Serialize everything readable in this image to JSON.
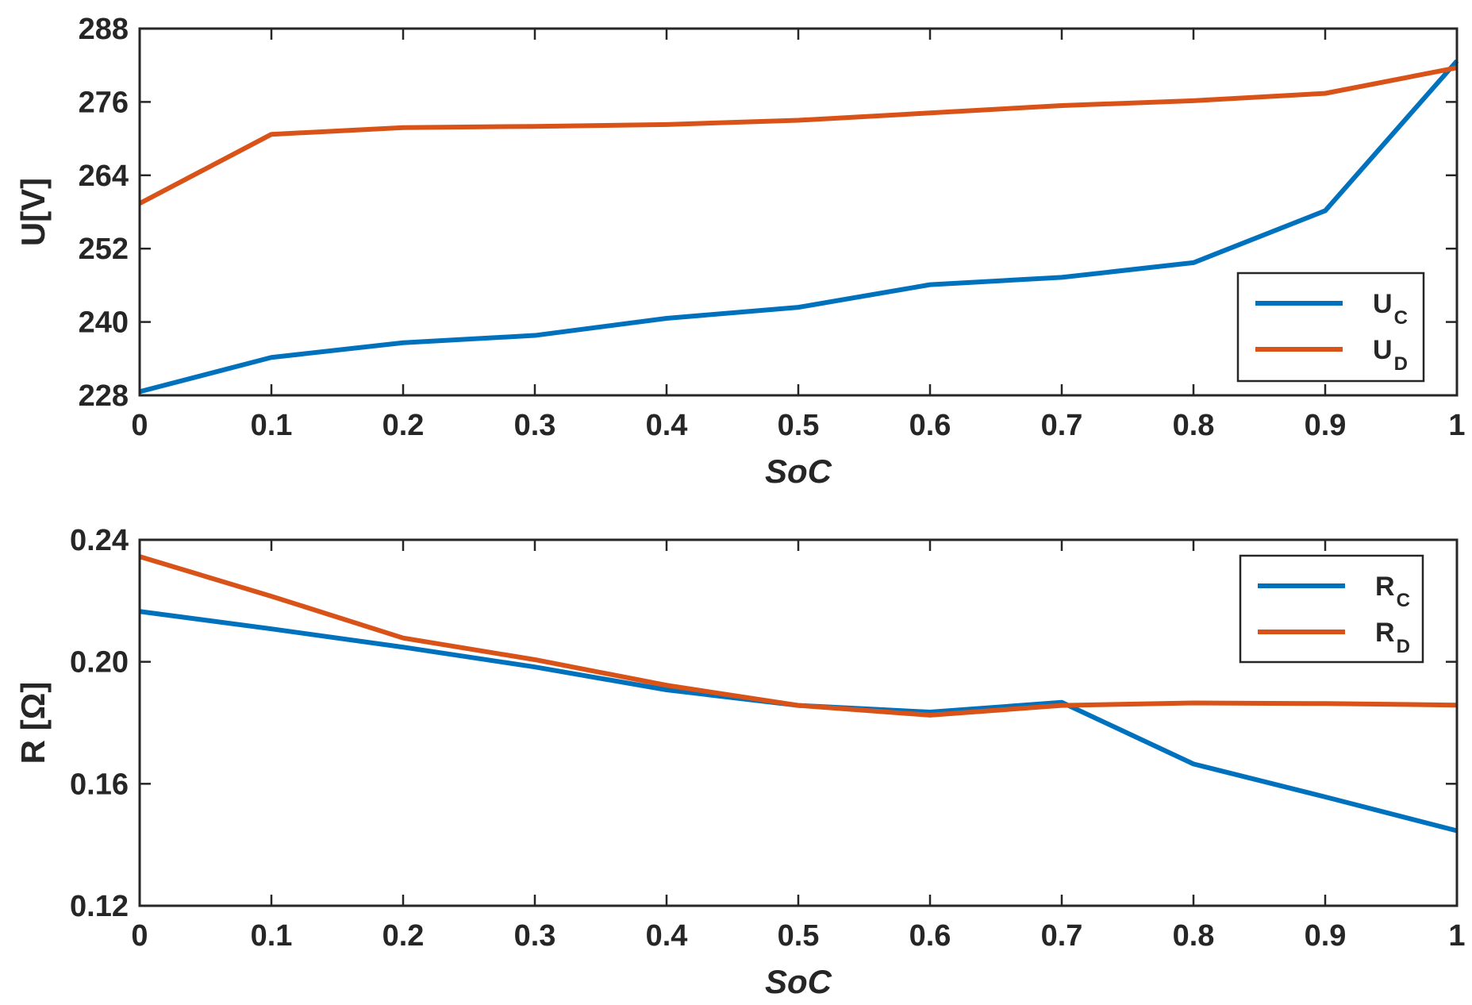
{
  "figure": {
    "colors": {
      "series1": "#0072BD",
      "series2": "#D95319",
      "axis": "#262626",
      "background": "#ffffff"
    }
  },
  "chart_data": [
    {
      "type": "line",
      "xlabel": "SoC",
      "ylabel": "U[V]",
      "xlim": [
        0,
        1
      ],
      "ylim": [
        228,
        288
      ],
      "xticks": [
        0,
        0.1,
        0.2,
        0.3,
        0.4,
        0.5,
        0.6,
        0.7,
        0.8,
        0.9,
        1
      ],
      "xtick_labels": [
        "0",
        "0.1",
        "0.2",
        "0.3",
        "0.4",
        "0.5",
        "0.6",
        "0.7",
        "0.8",
        "0.9",
        "1"
      ],
      "yticks": [
        228,
        240,
        252,
        264,
        276,
        288
      ],
      "ytick_labels": [
        "228",
        "240",
        "252",
        "264",
        "276",
        "288"
      ],
      "grid": false,
      "legend_position": "bottom-right",
      "x": [
        0,
        0.1,
        0.2,
        0.3,
        0.4,
        0.5,
        0.6,
        0.7,
        0.8,
        0.9,
        1
      ],
      "series": [
        {
          "name": "U_C",
          "label_main": "U",
          "label_sub": "C",
          "color": "#0072BD",
          "values": [
            228.6,
            234.2,
            236.6,
            237.8,
            240.6,
            242.4,
            246.1,
            247.3,
            249.7,
            258.2,
            282.7
          ]
        },
        {
          "name": "U_D",
          "label_main": "U",
          "label_sub": "D",
          "color": "#D95319",
          "values": [
            259.4,
            270.7,
            271.8,
            272.0,
            272.3,
            273.0,
            274.2,
            275.4,
            276.2,
            277.4,
            281.6
          ]
        }
      ]
    },
    {
      "type": "line",
      "xlabel": "SoC",
      "ylabel": "R [Ω]",
      "xlim": [
        0,
        1
      ],
      "ylim": [
        0.12,
        0.24
      ],
      "xticks": [
        0,
        0.1,
        0.2,
        0.3,
        0.4,
        0.5,
        0.6,
        0.7,
        0.8,
        0.9,
        1
      ],
      "xtick_labels": [
        "0",
        "0.1",
        "0.2",
        "0.3",
        "0.4",
        "0.5",
        "0.6",
        "0.7",
        "0.8",
        "0.9",
        "1"
      ],
      "yticks": [
        0.12,
        0.16,
        0.2,
        0.24
      ],
      "ytick_labels": [
        "0.12",
        "0.16",
        "0.20",
        "0.24"
      ],
      "grid": false,
      "legend_position": "top-right",
      "x": [
        0,
        0.1,
        0.2,
        0.3,
        0.4,
        0.5,
        0.6,
        0.7,
        0.8,
        0.9,
        1
      ],
      "series": [
        {
          "name": "R_C",
          "label_main": "R",
          "label_sub": "C",
          "color": "#0072BD",
          "values": [
            0.2165,
            0.2108,
            0.2048,
            0.1983,
            0.1908,
            0.1857,
            0.1835,
            0.1867,
            0.1665,
            0.1557,
            0.1446
          ]
        },
        {
          "name": "R_D",
          "label_main": "R",
          "label_sub": "D",
          "color": "#D95319",
          "values": [
            0.2345,
            0.2215,
            0.2078,
            0.2007,
            0.1923,
            0.1857,
            0.1825,
            0.1857,
            0.1865,
            0.1863,
            0.1858
          ]
        }
      ]
    }
  ]
}
